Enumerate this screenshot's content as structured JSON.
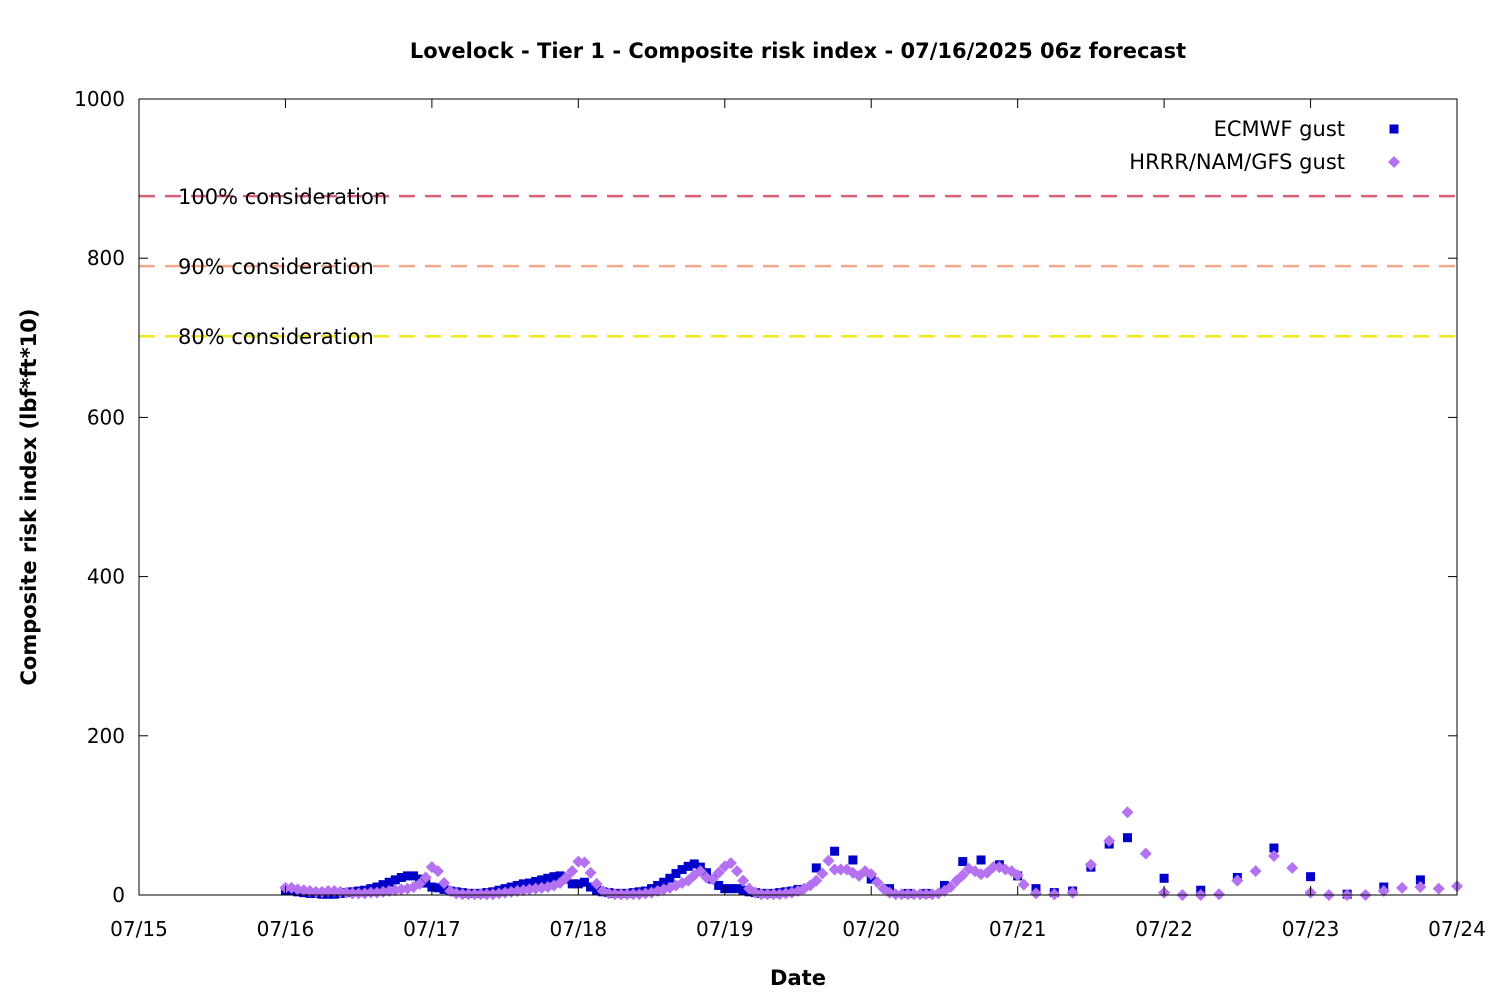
{
  "chart_data": {
    "type": "scatter",
    "title": "Lovelock - Tier 1 - Composite risk index - 07/16/2025 06z forecast",
    "xlabel": "Date",
    "ylabel": "Composite risk index (lbf*ft*10)",
    "x_ticks": [
      "07/15",
      "07/16",
      "07/17",
      "07/18",
      "07/19",
      "07/20",
      "07/21",
      "07/22",
      "07/23",
      "07/24"
    ],
    "y_ticks": [
      "0",
      "200",
      "400",
      "600",
      "800",
      "1000"
    ],
    "xlim": [
      "07/15 00z",
      "07/24 00z"
    ],
    "ylim": [
      0,
      1000
    ],
    "grid": false,
    "legend_position": "top-right",
    "thresholds": [
      {
        "label": "100% consideration",
        "value": 878,
        "color": "#d9607a"
      },
      {
        "label": "90% consideration",
        "value": 790,
        "color": "#f4a98a"
      },
      {
        "label": "80% consideration",
        "value": 702,
        "color": "#f0e81c"
      }
    ],
    "series": [
      {
        "name": "ECMWF gust",
        "color": "#0000c8",
        "marker": "square",
        "points": [
          [
            "07/16 00z",
            6
          ],
          [
            "07/16 01z",
            5
          ],
          [
            "07/16 02z",
            4
          ],
          [
            "07/16 03z",
            3
          ],
          [
            "07/16 04z",
            2
          ],
          [
            "07/16 05z",
            2
          ],
          [
            "07/16 06z",
            1
          ],
          [
            "07/16 07z",
            1
          ],
          [
            "07/16 08z",
            1
          ],
          [
            "07/16 09z",
            2
          ],
          [
            "07/16 10z",
            3
          ],
          [
            "07/16 11z",
            4
          ],
          [
            "07/16 12z",
            5
          ],
          [
            "07/16 13z",
            6
          ],
          [
            "07/16 14z",
            8
          ],
          [
            "07/16 15z",
            10
          ],
          [
            "07/16 16z",
            13
          ],
          [
            "07/16 17z",
            16
          ],
          [
            "07/16 18z",
            19
          ],
          [
            "07/16 19z",
            22
          ],
          [
            "07/16 20z",
            24
          ],
          [
            "07/16 21z",
            24
          ],
          [
            "07/16 22z",
            20
          ],
          [
            "07/16 23z",
            15
          ],
          [
            "07/17 00z",
            10
          ],
          [
            "07/17 01z",
            9
          ],
          [
            "07/17 02z",
            7
          ],
          [
            "07/17 03z",
            5
          ],
          [
            "07/17 04z",
            4
          ],
          [
            "07/17 05z",
            3
          ],
          [
            "07/17 06z",
            2
          ],
          [
            "07/17 07z",
            2
          ],
          [
            "07/17 08z",
            2
          ],
          [
            "07/17 09z",
            3
          ],
          [
            "07/17 10z",
            4
          ],
          [
            "07/17 11z",
            6
          ],
          [
            "07/17 12z",
            8
          ],
          [
            "07/17 13z",
            10
          ],
          [
            "07/17 14z",
            12
          ],
          [
            "07/17 15z",
            14
          ],
          [
            "07/17 16z",
            15
          ],
          [
            "07/17 17z",
            17
          ],
          [
            "07/17 18z",
            19
          ],
          [
            "07/17 19z",
            21
          ],
          [
            "07/17 20z",
            23
          ],
          [
            "07/17 21z",
            24
          ],
          [
            "07/17 22z",
            20
          ],
          [
            "07/17 23z",
            14
          ],
          [
            "07/18 00z",
            14
          ],
          [
            "07/18 01z",
            16
          ],
          [
            "07/18 02z",
            10
          ],
          [
            "07/18 03z",
            6
          ],
          [
            "07/18 04z",
            4
          ],
          [
            "07/18 05z",
            3
          ],
          [
            "07/18 06z",
            2
          ],
          [
            "07/18 07z",
            2
          ],
          [
            "07/18 08z",
            2
          ],
          [
            "07/18 09z",
            3
          ],
          [
            "07/18 10z",
            4
          ],
          [
            "07/18 11z",
            5
          ],
          [
            "07/18 12z",
            8
          ],
          [
            "07/18 13z",
            12
          ],
          [
            "07/18 14z",
            16
          ],
          [
            "07/18 15z",
            21
          ],
          [
            "07/18 16z",
            27
          ],
          [
            "07/18 17z",
            32
          ],
          [
            "07/18 18z",
            36
          ],
          [
            "07/18 19z",
            39
          ],
          [
            "07/18 20z",
            35
          ],
          [
            "07/18 21z",
            28
          ],
          [
            "07/18 22z",
            20
          ],
          [
            "07/18 23z",
            12
          ],
          [
            "07/19 00z",
            8
          ],
          [
            "07/19 01z",
            8
          ],
          [
            "07/19 02z",
            8
          ],
          [
            "07/19 03z",
            6
          ],
          [
            "07/19 04z",
            4
          ],
          [
            "07/19 05z",
            3
          ],
          [
            "07/19 06z",
            2
          ],
          [
            "07/19 07z",
            2
          ],
          [
            "07/19 08z",
            2
          ],
          [
            "07/19 09z",
            3
          ],
          [
            "07/19 10z",
            4
          ],
          [
            "07/19 11z",
            5
          ],
          [
            "07/19 12z",
            7
          ],
          [
            "07/19 15z",
            34
          ],
          [
            "07/19 18z",
            55
          ],
          [
            "07/19 21z",
            44
          ],
          [
            "07/20 00z",
            20
          ],
          [
            "07/20 03z",
            8
          ],
          [
            "07/20 06z",
            2
          ],
          [
            "07/20 09z",
            2
          ],
          [
            "07/20 12z",
            12
          ],
          [
            "07/20 15z",
            42
          ],
          [
            "07/20 18z",
            44
          ],
          [
            "07/20 21z",
            38
          ],
          [
            "07/21 00z",
            24
          ],
          [
            "07/21 03z",
            8
          ],
          [
            "07/21 06z",
            3
          ],
          [
            "07/21 09z",
            5
          ],
          [
            "07/21 12z",
            35
          ],
          [
            "07/21 15z",
            64
          ],
          [
            "07/21 18z",
            72
          ],
          [
            "07/22 00z",
            21
          ],
          [
            "07/22 06z",
            6
          ],
          [
            "07/22 12z",
            22
          ],
          [
            "07/22 18z",
            59
          ],
          [
            "07/23 00z",
            23
          ],
          [
            "07/23 06z",
            1
          ],
          [
            "07/23 12z",
            10
          ],
          [
            "07/23 18z",
            19
          ]
        ]
      },
      {
        "name": "HRRR/NAM/GFS gust",
        "color": "#b472f0",
        "marker": "diamond",
        "points": [
          [
            "07/16 00z",
            9
          ],
          [
            "07/16 01z",
            9
          ],
          [
            "07/16 02z",
            7
          ],
          [
            "07/16 03z",
            6
          ],
          [
            "07/16 04z",
            5
          ],
          [
            "07/16 05z",
            4
          ],
          [
            "07/16 06z",
            4
          ],
          [
            "07/16 07z",
            5
          ],
          [
            "07/16 08z",
            5
          ],
          [
            "07/16 09z",
            4
          ],
          [
            "07/16 10z",
            3
          ],
          [
            "07/16 11z",
            2
          ],
          [
            "07/16 12z",
            2
          ],
          [
            "07/16 13z",
            2
          ],
          [
            "07/16 14z",
            3
          ],
          [
            "07/16 15z",
            3
          ],
          [
            "07/16 16z",
            4
          ],
          [
            "07/16 17z",
            5
          ],
          [
            "07/16 18z",
            6
          ],
          [
            "07/16 19z",
            7
          ],
          [
            "07/16 20z",
            8
          ],
          [
            "07/16 21z",
            10
          ],
          [
            "07/16 22z",
            14
          ],
          [
            "07/16 23z",
            22
          ],
          [
            "07/17 00z",
            35
          ],
          [
            "07/17 01z",
            30
          ],
          [
            "07/17 02z",
            15
          ],
          [
            "07/17 03z",
            5
          ],
          [
            "07/17 04z",
            2
          ],
          [
            "07/17 05z",
            1
          ],
          [
            "07/17 06z",
            1
          ],
          [
            "07/17 07z",
            1
          ],
          [
            "07/17 08z",
            1
          ],
          [
            "07/17 09z",
            1
          ],
          [
            "07/17 10z",
            1
          ],
          [
            "07/17 11z",
            2
          ],
          [
            "07/17 12z",
            3
          ],
          [
            "07/17 13z",
            4
          ],
          [
            "07/17 14z",
            5
          ],
          [
            "07/17 15z",
            6
          ],
          [
            "07/17 16z",
            7
          ],
          [
            "07/17 17z",
            8
          ],
          [
            "07/17 18z",
            9
          ],
          [
            "07/17 19z",
            10
          ],
          [
            "07/17 20z",
            12
          ],
          [
            "07/17 21z",
            15
          ],
          [
            "07/17 22z",
            22
          ],
          [
            "07/17 23z",
            30
          ],
          [
            "07/18 00z",
            42
          ],
          [
            "07/18 01z",
            41
          ],
          [
            "07/18 02z",
            28
          ],
          [
            "07/18 03z",
            14
          ],
          [
            "07/18 04z",
            5
          ],
          [
            "07/18 05z",
            2
          ],
          [
            "07/18 06z",
            1
          ],
          [
            "07/18 07z",
            1
          ],
          [
            "07/18 08z",
            1
          ],
          [
            "07/18 09z",
            1
          ],
          [
            "07/18 10z",
            1
          ],
          [
            "07/18 11z",
            2
          ],
          [
            "07/18 12z",
            3
          ],
          [
            "07/18 13z",
            5
          ],
          [
            "07/18 14z",
            7
          ],
          [
            "07/18 15z",
            9
          ],
          [
            "07/18 16z",
            12
          ],
          [
            "07/18 17z",
            15
          ],
          [
            "07/18 18z",
            18
          ],
          [
            "07/18 19z",
            25
          ],
          [
            "07/18 20z",
            30
          ],
          [
            "07/18 21z",
            22
          ],
          [
            "07/18 22z",
            20
          ],
          [
            "07/18 23z",
            28
          ],
          [
            "07/19 00z",
            36
          ],
          [
            "07/19 01z",
            40
          ],
          [
            "07/19 02z",
            30
          ],
          [
            "07/19 03z",
            18
          ],
          [
            "07/19 04z",
            8
          ],
          [
            "07/19 05z",
            3
          ],
          [
            "07/19 06z",
            1
          ],
          [
            "07/19 07z",
            1
          ],
          [
            "07/19 08z",
            1
          ],
          [
            "07/19 09z",
            1
          ],
          [
            "07/19 10z",
            2
          ],
          [
            "07/19 11z",
            3
          ],
          [
            "07/19 12z",
            5
          ],
          [
            "07/19 13z",
            8
          ],
          [
            "07/19 14z",
            12
          ],
          [
            "07/19 15z",
            18
          ],
          [
            "07/19 16z",
            27
          ],
          [
            "07/19 17z",
            43
          ],
          [
            "07/19 18z",
            32
          ],
          [
            "07/19 19z",
            32
          ],
          [
            "07/19 20z",
            32
          ],
          [
            "07/19 21z",
            28
          ],
          [
            "07/19 22z",
            24
          ],
          [
            "07/19 23z",
            30
          ],
          [
            "07/20 00z",
            26
          ],
          [
            "07/20 01z",
            16
          ],
          [
            "07/20 02z",
            8
          ],
          [
            "07/20 03z",
            3
          ],
          [
            "07/20 04z",
            1
          ],
          [
            "07/20 05z",
            1
          ],
          [
            "07/20 06z",
            1
          ],
          [
            "07/20 07z",
            1
          ],
          [
            "07/20 08z",
            1
          ],
          [
            "07/20 09z",
            1
          ],
          [
            "07/20 10z",
            1
          ],
          [
            "07/20 11z",
            2
          ],
          [
            "07/20 12z",
            5
          ],
          [
            "07/20 13z",
            10
          ],
          [
            "07/20 14z",
            18
          ],
          [
            "07/20 15z",
            25
          ],
          [
            "07/20 16z",
            33
          ],
          [
            "07/20 17z",
            30
          ],
          [
            "07/20 18z",
            26
          ],
          [
            "07/20 19z",
            28
          ],
          [
            "07/20 20z",
            35
          ],
          [
            "07/20 21z",
            35
          ],
          [
            "07/20 22z",
            32
          ],
          [
            "07/20 23z",
            30
          ],
          [
            "07/21 00z",
            25
          ],
          [
            "07/21 01z",
            13
          ],
          [
            "07/21 03z",
            2
          ],
          [
            "07/21 06z",
            1
          ],
          [
            "07/21 09z",
            3
          ],
          [
            "07/21 12z",
            38
          ],
          [
            "07/21 15z",
            68
          ],
          [
            "07/21 18z",
            104
          ],
          [
            "07/21 21z",
            52
          ],
          [
            "07/22 00z",
            3
          ],
          [
            "07/22 03z",
            0
          ],
          [
            "07/22 06z",
            0
          ],
          [
            "07/22 09z",
            1
          ],
          [
            "07/22 12z",
            18
          ],
          [
            "07/22 15z",
            30
          ],
          [
            "07/22 18z",
            49
          ],
          [
            "07/22 21z",
            34
          ],
          [
            "07/23 00z",
            3
          ],
          [
            "07/23 03z",
            0
          ],
          [
            "07/23 06z",
            0
          ],
          [
            "07/23 09z",
            0
          ],
          [
            "07/23 12z",
            5
          ],
          [
            "07/23 15z",
            9
          ],
          [
            "07/23 18z",
            10
          ],
          [
            "07/23 21z",
            8
          ],
          [
            "07/24 00z",
            11
          ]
        ]
      }
    ]
  }
}
